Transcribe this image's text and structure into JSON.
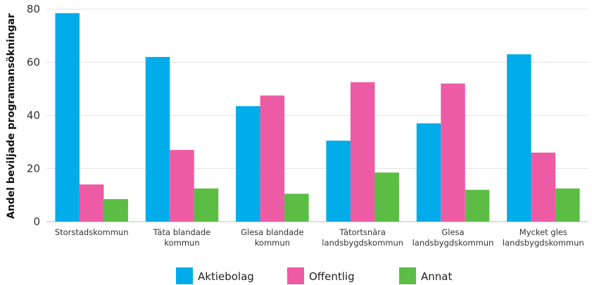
{
  "chart_data": {
    "type": "bar",
    "title": "",
    "xlabel": "",
    "ylabel": "Andel beviljade programansökningar",
    "ylim": [
      0,
      80
    ],
    "yticks": [
      0,
      20,
      40,
      60,
      80
    ],
    "grid": true,
    "legend_position": "bottom",
    "categories": [
      [
        "Storstadskommun"
      ],
      [
        "Täta blandade",
        "kommun"
      ],
      [
        "Glesa blandade",
        "kommun"
      ],
      [
        "Tätortsnära",
        "landsbygdskommun"
      ],
      [
        "Glesa",
        "landsbygdskommun"
      ],
      [
        "Mycket gles",
        "landsbygdskommun"
      ]
    ],
    "series": [
      {
        "name": "Aktiebolag",
        "color": "#00ace9",
        "values": [
          78.5,
          62.0,
          43.5,
          30.5,
          37.0,
          63.0
        ]
      },
      {
        "name": "Offentlig",
        "color": "#ee5ba5",
        "values": [
          14.0,
          27.0,
          47.5,
          52.5,
          52.0,
          26.0
        ]
      },
      {
        "name": "Annat",
        "color": "#5cbd45",
        "values": [
          8.5,
          12.5,
          10.5,
          18.5,
          12.0,
          12.5
        ]
      }
    ]
  }
}
